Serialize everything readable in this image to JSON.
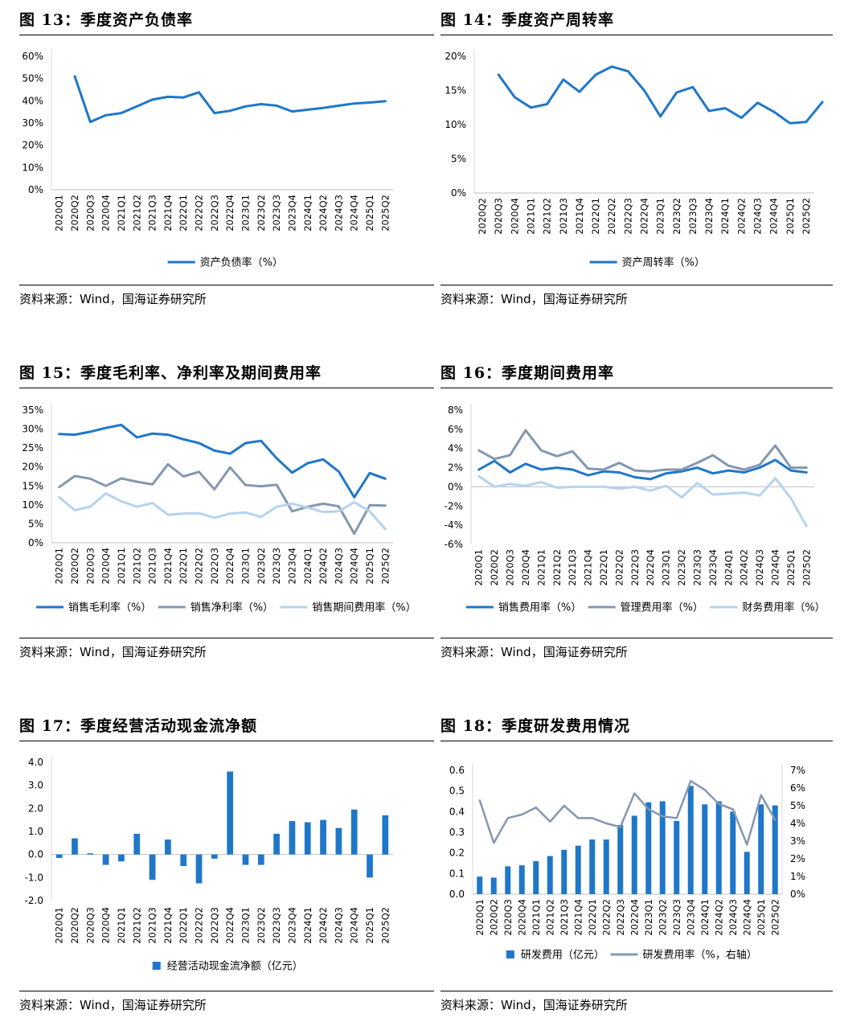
{
  "source_note": "资料来源：Wind，国海证券研究所",
  "quarters": [
    "2020Q1",
    "2020Q2",
    "2020Q3",
    "2020Q4",
    "2021Q1",
    "2021Q2",
    "2021Q3",
    "2021Q4",
    "2022Q1",
    "2022Q2",
    "2022Q3",
    "2022Q4",
    "2023Q1",
    "2023Q2",
    "2023Q3",
    "2023Q4",
    "2024Q1",
    "2024Q2",
    "2024Q3",
    "2024Q4",
    "2025Q1",
    "2025Q2"
  ],
  "colors": {
    "blue": "#1f77c9",
    "gray": "#8497b0",
    "light_blue": "#b4d3ef"
  },
  "chart_data": [
    {
      "id": "fig13",
      "title": "图 13：季度资产负债率",
      "type": "line",
      "categories_from": "quarters",
      "x_start_index": 0,
      "ylim": [
        0,
        60
      ],
      "yticks": [
        0,
        10,
        20,
        30,
        40,
        50,
        60
      ],
      "ytick_labels": [
        "0%",
        "10%",
        "20%",
        "30%",
        "40%",
        "50%",
        "60%"
      ],
      "series": [
        {
          "name": "资产负债率（%）",
          "color": "#1f77c9",
          "start_index": 1,
          "values": [
            51,
            30.5,
            33.5,
            34.5,
            37.5,
            40.5,
            41.8,
            41.5,
            43.8,
            34.5,
            35.5,
            37.5,
            38.5,
            37.8,
            35.2,
            36,
            36.8,
            37.8,
            38.8,
            39.2,
            39.8
          ]
        }
      ]
    },
    {
      "id": "fig14",
      "title": "图 14：季度资产周转率",
      "type": "line",
      "categories_from": "quarters",
      "x_start_index": 1,
      "ylim": [
        0,
        20
      ],
      "yticks": [
        0,
        5,
        10,
        15,
        20
      ],
      "ytick_labels": [
        "0%",
        "5%",
        "10%",
        "15%",
        "20%"
      ],
      "series": [
        {
          "name": "资产周转率（%）",
          "color": "#1f77c9",
          "start_index": 1,
          "values": [
            17.3,
            14,
            12.5,
            13,
            16.6,
            14.8,
            17.3,
            18.5,
            17.8,
            15,
            11.2,
            14.7,
            15.5,
            12,
            12.4,
            11,
            13.2,
            11.9,
            10.2,
            10.4,
            13.3
          ]
        }
      ]
    },
    {
      "id": "fig15",
      "title": "图 15：季度毛利率、净利率及期间费用率",
      "type": "line",
      "categories_from": "quarters",
      "x_start_index": 0,
      "ylim": [
        0,
        35
      ],
      "yticks": [
        0,
        5,
        10,
        15,
        20,
        25,
        30,
        35
      ],
      "ytick_labels": [
        "0%",
        "5%",
        "10%",
        "15%",
        "20%",
        "25%",
        "30%",
        "35%"
      ],
      "series": [
        {
          "name": "销售毛利率（%）",
          "color": "#1f77c9",
          "start_index": 0,
          "values": [
            28.7,
            28.5,
            29.3,
            30.3,
            31.1,
            27.8,
            28.8,
            28.5,
            27.3,
            26.3,
            24.3,
            23.5,
            26.3,
            26.9,
            22.3,
            18.5,
            21,
            22,
            18.8,
            12,
            18.4,
            16.9
          ]
        },
        {
          "name": "销售净利率（%）",
          "color": "#8497b0",
          "start_index": 0,
          "values": [
            14.7,
            17.6,
            16.9,
            15,
            17,
            16.1,
            15.4,
            20.7,
            17.5,
            18.7,
            14.1,
            19.9,
            15.2,
            14.9,
            15.3,
            8.3,
            9.5,
            10.3,
            9.6,
            2.4,
            9.9,
            9.8
          ]
        },
        {
          "name": "销售期间费用率（%）",
          "color": "#b4d3ef",
          "start_index": 0,
          "values": [
            12,
            8.6,
            9.5,
            13,
            10.9,
            9.5,
            10.5,
            7.4,
            7.7,
            7.8,
            6.6,
            7.7,
            8,
            6.8,
            9.5,
            10.3,
            9.3,
            8.1,
            8.3,
            10.7,
            8.3,
            3.6
          ]
        }
      ]
    },
    {
      "id": "fig16",
      "title": "图 16：季度期间费用率",
      "type": "line",
      "categories_from": "quarters",
      "x_start_index": 0,
      "ylim": [
        -6,
        8
      ],
      "yticks": [
        -6,
        -4,
        -2,
        0,
        2,
        4,
        6,
        8
      ],
      "ytick_labels": [
        "-6%",
        "-4%",
        "-2%",
        "0%",
        "2%",
        "4%",
        "6%",
        "8%"
      ],
      "series": [
        {
          "name": "销售费用率（%）",
          "color": "#1f77c9",
          "start_index": 0,
          "values": [
            1.8,
            2.7,
            1.5,
            2.4,
            1.8,
            2,
            1.8,
            1.2,
            1.6,
            1.5,
            1,
            0.8,
            1.4,
            1.6,
            2,
            1.4,
            1.7,
            1.5,
            2,
            2.8,
            1.7,
            1.5
          ]
        },
        {
          "name": "管理费用率（%）",
          "color": "#8497b0",
          "start_index": 0,
          "values": [
            3.8,
            2.9,
            3.3,
            5.9,
            3.8,
            3.2,
            3.7,
            1.9,
            1.8,
            2.5,
            1.7,
            1.6,
            1.8,
            1.8,
            2.5,
            3.3,
            2.2,
            1.8,
            2.3,
            4.3,
            2,
            2
          ]
        },
        {
          "name": "财务费用率（%）",
          "color": "#b4d3ef",
          "start_index": 0,
          "values": [
            1.1,
            0,
            0.3,
            0.1,
            0.5,
            -0.1,
            0,
            0,
            0,
            -0.2,
            0,
            -0.4,
            0.1,
            -1.1,
            0.4,
            -0.8,
            -0.7,
            -0.6,
            -0.9,
            0.9,
            -1.2,
            -4.1
          ]
        }
      ]
    },
    {
      "id": "fig17",
      "title": "图 17：季度经营活动现金流净额",
      "type": "bar",
      "categories_from": "quarters",
      "x_start_index": 0,
      "ylim": [
        -2,
        4
      ],
      "yticks": [
        -2,
        -1,
        0,
        1,
        2,
        3,
        4
      ],
      "ytick_labels": [
        "-2.0",
        "-1.0",
        "0.0",
        "1.0",
        "2.0",
        "3.0",
        "4.0"
      ],
      "series": [
        {
          "name": "经营活动现金流净额（亿元）",
          "color": "#1f77c9",
          "start_index": 0,
          "values": [
            -0.15,
            0.7,
            0.05,
            -0.45,
            -0.3,
            0.9,
            -1.1,
            0.65,
            -0.5,
            -1.25,
            -0.18,
            3.6,
            -0.45,
            -0.45,
            0.9,
            1.45,
            1.4,
            1.5,
            1.15,
            1.95,
            -1,
            1.7
          ]
        }
      ]
    },
    {
      "id": "fig18",
      "title": "图 18：季度研发费用情况",
      "type": "bar+line",
      "categories_from": "quarters",
      "x_start_index": 0,
      "ylim": [
        0,
        0.6
      ],
      "yticks": [
        0,
        0.1,
        0.2,
        0.3,
        0.4,
        0.5,
        0.6
      ],
      "ytick_labels": [
        "0.0",
        "0.1",
        "0.2",
        "0.3",
        "0.4",
        "0.5",
        "0.6"
      ],
      "y2lim": [
        0,
        7
      ],
      "y2ticks": [
        0,
        1,
        2,
        3,
        4,
        5,
        6,
        7
      ],
      "y2tick_labels": [
        "0%",
        "1%",
        "2%",
        "3%",
        "4%",
        "5%",
        "6%",
        "7%"
      ],
      "series": [
        {
          "name": "研发费用（亿元）",
          "kind": "bar",
          "axis": "left",
          "color": "#1f77c9",
          "start_index": 0,
          "values": [
            0.085,
            0.08,
            0.135,
            0.14,
            0.16,
            0.185,
            0.215,
            0.235,
            0.265,
            0.265,
            0.335,
            0.38,
            0.445,
            0.45,
            0.355,
            0.525,
            0.435,
            0.45,
            0.4,
            0.205,
            0.435,
            0.43
          ]
        },
        {
          "name": "研发费用率（%，右轴）",
          "kind": "line",
          "axis": "right",
          "color": "#8497b0",
          "start_index": 0,
          "values": [
            5.3,
            2.9,
            4.3,
            4.5,
            4.9,
            4.1,
            5,
            4.3,
            4.3,
            4,
            3.8,
            5.7,
            4.8,
            4.4,
            4.3,
            6.4,
            5.9,
            5.1,
            4.8,
            2.8,
            5.6,
            4.2
          ]
        }
      ]
    }
  ]
}
